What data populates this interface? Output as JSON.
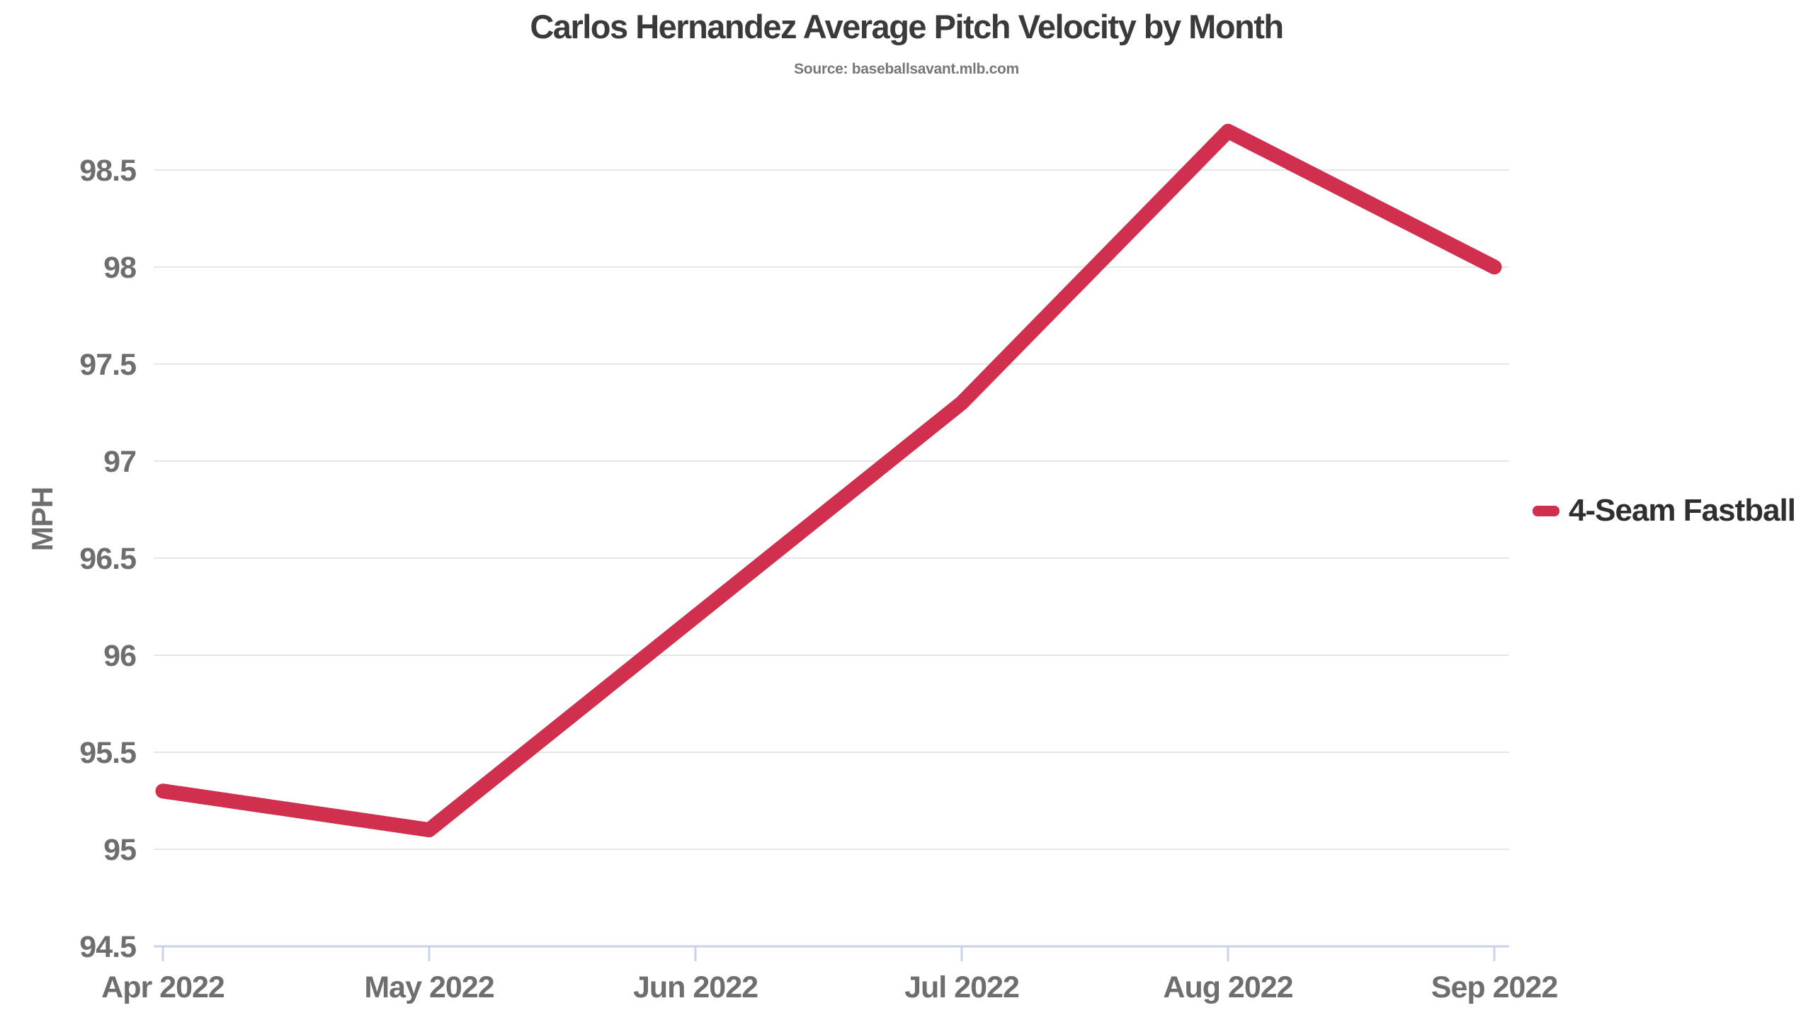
{
  "title": "Carlos Hernandez Average Pitch Velocity by Month",
  "subtitle": "Source: baseballsavant.mlb.com",
  "legend": {
    "label": "4-Seam Fastball",
    "swatch_color": "#d0304e"
  },
  "colors": {
    "line": "#d0304e",
    "grid": "#e6e6e6",
    "axis": "#c9d3e8",
    "tick_label": "#6e6e6e",
    "title": "#3a3a3a",
    "subtitle": "#787878",
    "background": "#ffffff"
  },
  "chart_data": {
    "type": "line",
    "title": "Carlos Hernandez Average Pitch Velocity by Month",
    "subtitle": "Source: baseballsavant.mlb.com",
    "xlabel": "",
    "ylabel": "MPH",
    "categories": [
      "Apr 2022",
      "May 2022",
      "Jun 2022",
      "Jul 2022",
      "Aug 2022",
      "Sep 2022"
    ],
    "series": [
      {
        "name": "4-Seam Fastball",
        "color": "#d0304e",
        "values": [
          95.3,
          95.1,
          96.2,
          97.3,
          98.7,
          98.0
        ]
      }
    ],
    "yticks": [
      94.5,
      95,
      95.5,
      96,
      96.5,
      97,
      97.5,
      98,
      98.5
    ],
    "ylim": [
      94.5,
      98.85
    ],
    "grid": true,
    "legend_position": "right"
  }
}
